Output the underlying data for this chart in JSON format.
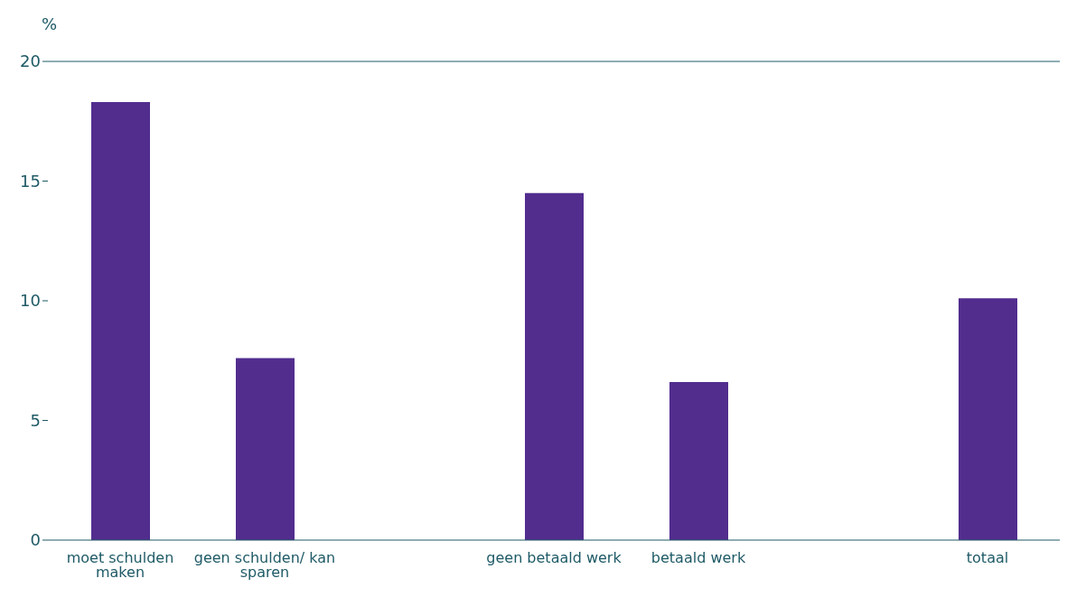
{
  "chart_data": {
    "type": "bar",
    "ylabel": "%",
    "categories": [
      "moet schulden maken",
      "geen schulden/ kan sparen",
      null,
      "geen betaald werk",
      "betaald werk",
      null,
      "totaal"
    ],
    "values": [
      18.3,
      7.6,
      null,
      14.5,
      6.6,
      null,
      10.1
    ],
    "color": "#522d8e",
    "ylim": [
      0,
      20
    ],
    "yticks": [
      0,
      5,
      10,
      15,
      20
    ],
    "grid": false,
    "legend": false
  }
}
